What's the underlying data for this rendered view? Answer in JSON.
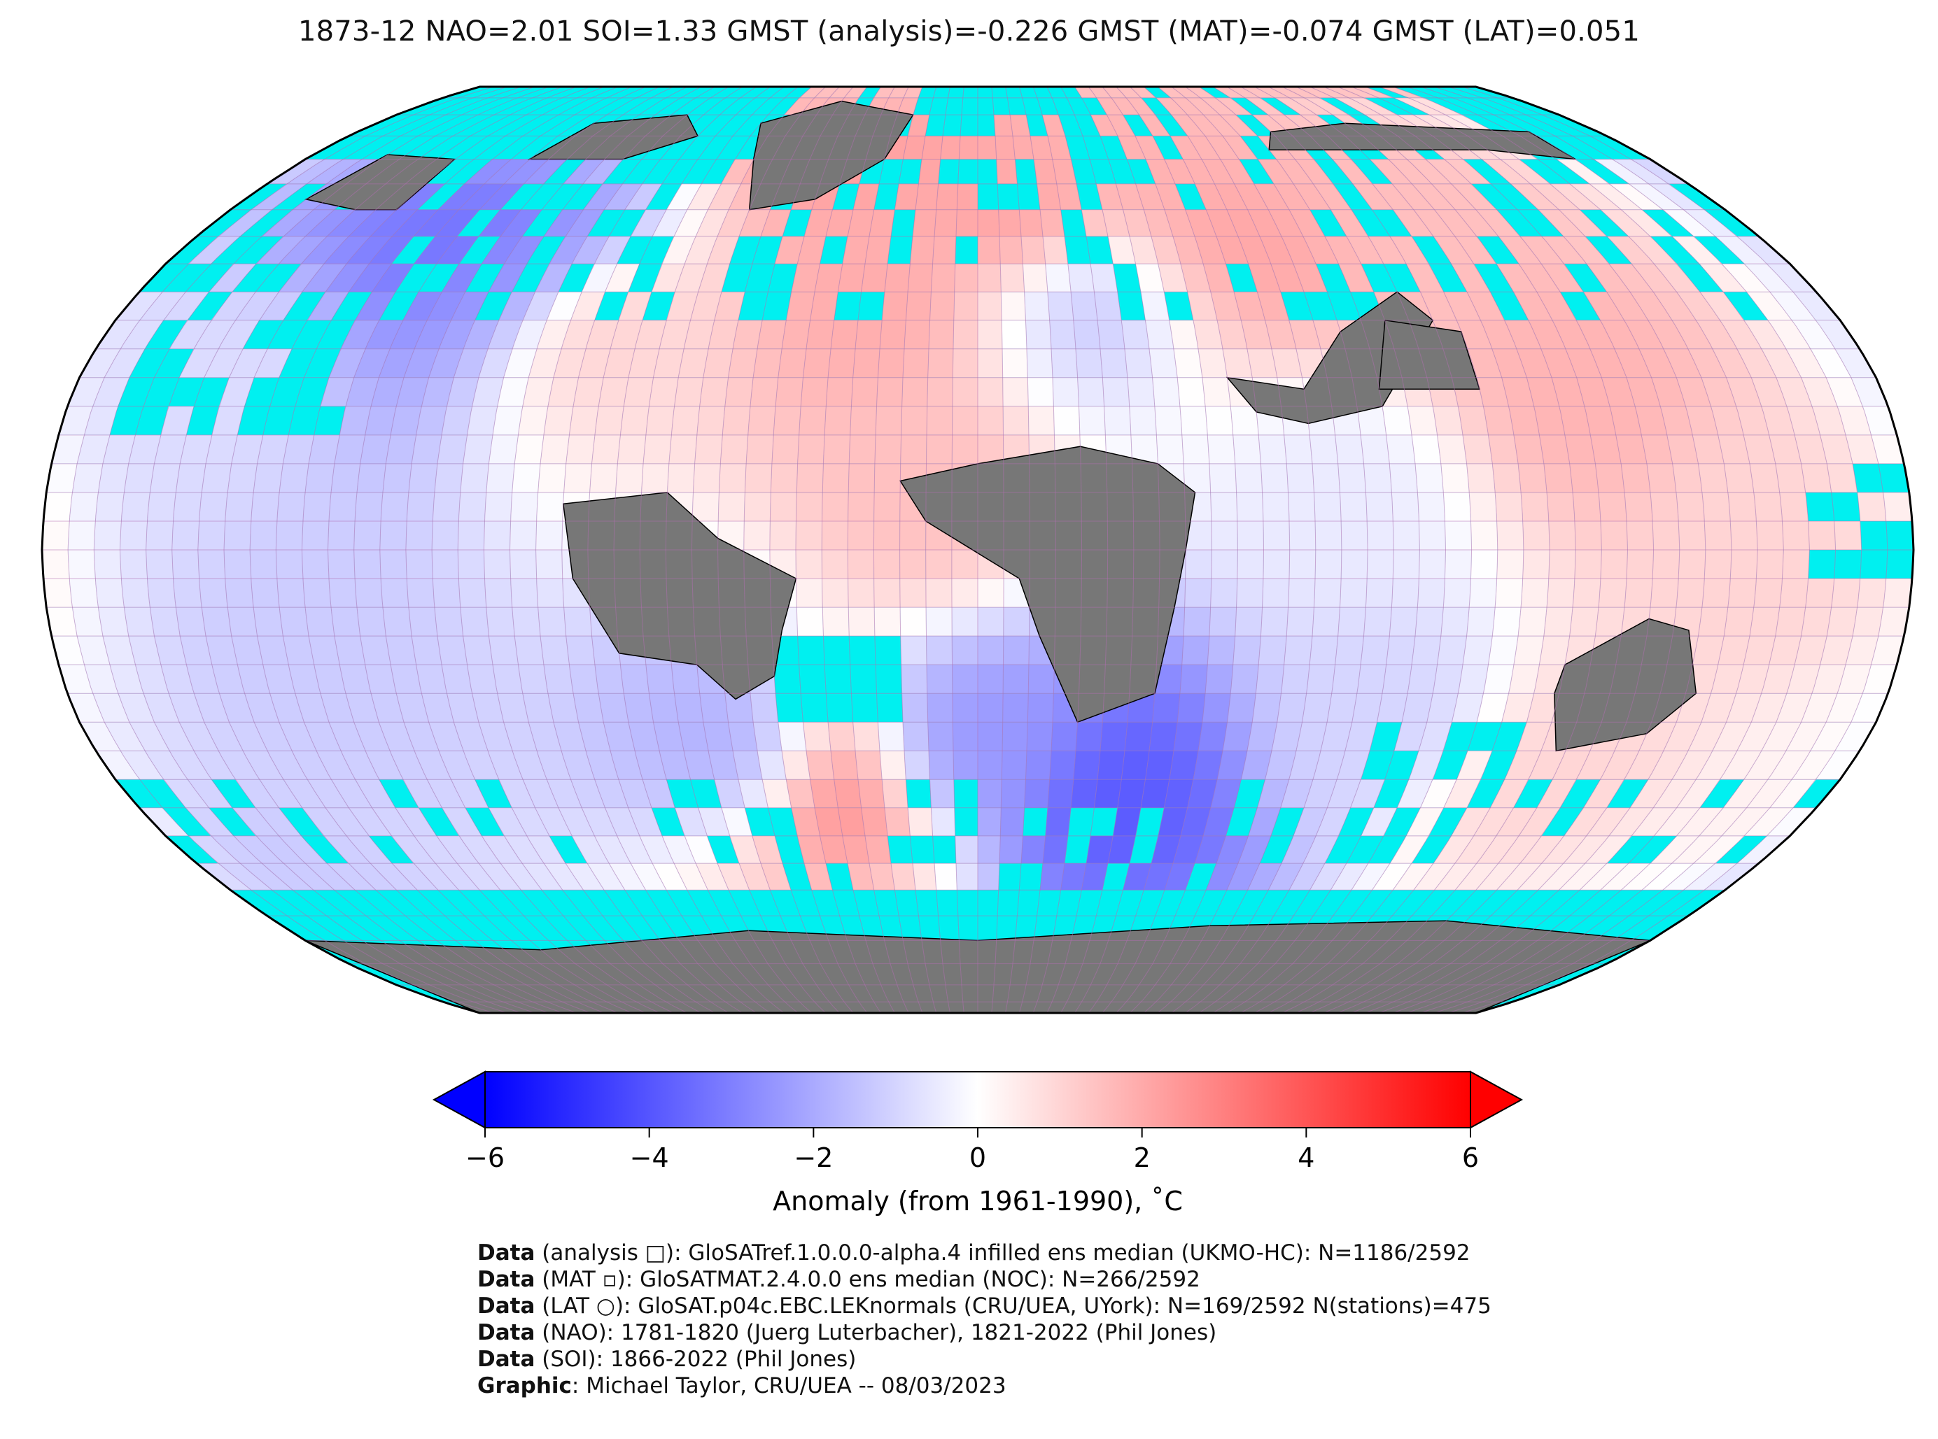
{
  "title": "1873-12 NAO=2.01 SOI=1.33 GMST (analysis)=-0.226 GMST (MAT)=-0.074 GMST (LAT)=0.051",
  "map": {
    "projection": "Robinson",
    "colors": {
      "no_data": "#00f0f0",
      "land_masked": "#777777",
      "grid_line": "#b070b0",
      "coastline": "#000000",
      "outline": "#000000"
    },
    "anomaly_regions": [
      {
        "lon": -100,
        "lat": 50,
        "anomaly": -2.8
      },
      {
        "lon": -120,
        "lat": 55,
        "anomaly": -3.5
      },
      {
        "lon": -80,
        "lat": 40,
        "anomaly": 1.2
      },
      {
        "lon": -40,
        "lat": 70,
        "anomaly": 2.5
      },
      {
        "lon": -20,
        "lat": 45,
        "anomaly": 2.0
      },
      {
        "lon": 10,
        "lat": 55,
        "anomaly": 2.8
      },
      {
        "lon": 20,
        "lat": 45,
        "anomaly": -1.8
      },
      {
        "lon": 60,
        "lat": 55,
        "anomaly": 2.2
      },
      {
        "lon": 100,
        "lat": 55,
        "anomaly": 1.5
      },
      {
        "lon": 120,
        "lat": 30,
        "anomaly": 1.8
      },
      {
        "lon": -150,
        "lat": 30,
        "anomaly": -0.8
      },
      {
        "lon": 150,
        "lat": 0,
        "anomaly": 1.0
      },
      {
        "lon": -130,
        "lat": -20,
        "anomaly": -1.2
      },
      {
        "lon": -50,
        "lat": -35,
        "anomaly": -2.0
      },
      {
        "lon": -30,
        "lat": -45,
        "anomaly": 3.0
      },
      {
        "lon": 0,
        "lat": -35,
        "anomaly": -2.5
      },
      {
        "lon": 30,
        "lat": -45,
        "anomaly": -4.0
      },
      {
        "lon": 80,
        "lat": -30,
        "anomaly": -1.0
      },
      {
        "lon": 120,
        "lat": -40,
        "anomaly": 1.0
      },
      {
        "lon": 170,
        "lat": -50,
        "anomaly": 0.5
      },
      {
        "lon": -170,
        "lat": -55,
        "anomaly": -1.5
      },
      {
        "lon": -10,
        "lat": 10,
        "anomaly": 1.5
      },
      {
        "lon": 70,
        "lat": 10,
        "anomaly": -0.5
      }
    ]
  },
  "colorbar": {
    "vmin": -6,
    "vmax": 6,
    "ticks": [
      "−6",
      "−4",
      "−2",
      "0",
      "2",
      "4",
      "6"
    ],
    "label": "Anomaly (from 1961-1990), ˚C",
    "colors": {
      "low": "#0000ff",
      "mid": "#ffffff",
      "high": "#ff0000"
    }
  },
  "credits": [
    {
      "bold": "Data",
      "text": " (analysis □): GloSATref.1.0.0.0-alpha.4 infilled ens median (UKMO-HC): N=1186/2592"
    },
    {
      "bold": "Data",
      "text": " (MAT ▫): GloSATMAT.2.4.0.0 ens median (NOC): N=266/2592"
    },
    {
      "bold": "Data",
      "text": " (LAT ○): GloSAT.p04c.EBC.LEKnormals (CRU/UEA, UYork): N=169/2592 N(stations)=475"
    },
    {
      "bold": "Data",
      "text": " (NAO): 1781-1820 (Juerg Luterbacher), 1821-2022 (Phil Jones)"
    },
    {
      "bold": "Data",
      "text": " (SOI): 1866-2022 (Phil Jones)"
    },
    {
      "bold": "Graphic",
      "text": ": Michael Taylor, CRU/UEA -- 08/03/2023"
    }
  ]
}
